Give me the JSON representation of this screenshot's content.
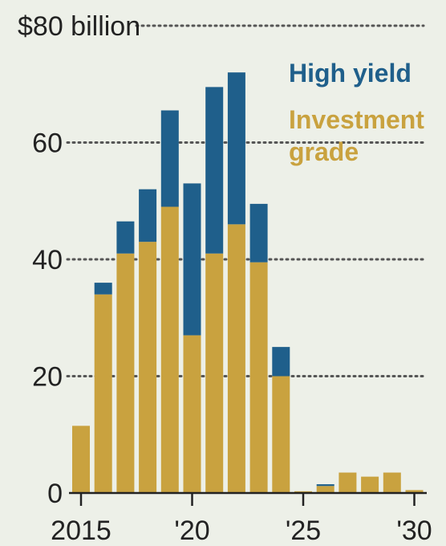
{
  "chart_data": {
    "type": "bar",
    "stacked": true,
    "x": [
      2015,
      2016,
      2017,
      2018,
      2019,
      2020,
      2021,
      2022,
      2023,
      2024,
      2025,
      2026,
      2027,
      2028,
      2029,
      2030
    ],
    "series": [
      {
        "name": "Investment grade",
        "color": "#c9a23f",
        "values": [
          11.5,
          34,
          41,
          43,
          49,
          27,
          41,
          46,
          39.5,
          20,
          0.3,
          1.2,
          3.5,
          2.8,
          3.5,
          0.5
        ]
      },
      {
        "name": "High yield",
        "color": "#1f5f8b",
        "values": [
          0,
          2,
          5.5,
          9,
          16.5,
          26,
          28.5,
          26,
          10,
          5,
          0,
          0.3,
          0,
          0,
          0,
          0
        ]
      }
    ],
    "ylim": [
      0,
      80
    ],
    "yticks": [
      {
        "value": 0,
        "label": "0"
      },
      {
        "value": 20,
        "label": "20"
      },
      {
        "value": 40,
        "label": "40"
      },
      {
        "value": 60,
        "label": "60"
      },
      {
        "value": 80,
        "label": "$80 billion"
      }
    ],
    "xticks": [
      {
        "value": 2015,
        "label": "2015"
      },
      {
        "value": 2020,
        "label": "'20"
      },
      {
        "value": 2025,
        "label": "'25"
      },
      {
        "value": 2030,
        "label": "'30"
      }
    ],
    "grid": "dotted horizontal",
    "legend": {
      "placement": "top-right",
      "entries": [
        {
          "label": "High yield",
          "color": "#1f5f8b"
        },
        {
          "label": "Investment",
          "color": "#c9a23f"
        },
        {
          "label": "grade",
          "color": "#c9a23f"
        }
      ]
    }
  }
}
